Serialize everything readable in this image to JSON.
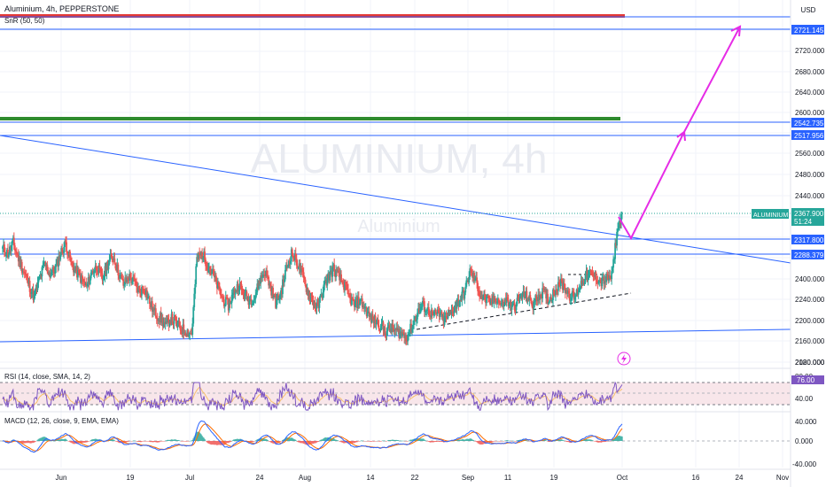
{
  "header": {
    "title": "Aluminium, 4h, PEPPERSTONE",
    "indicator": "SnR (50, 50)",
    "currency": "USD"
  },
  "watermark": {
    "main": "ALUMINIUM, 4h",
    "sub": "Aluminium"
  },
  "colors": {
    "up": "#26a69a",
    "down": "#ef5350",
    "hline": "#2962ff",
    "resistance_red": "#e53935",
    "resistance_green": "#2e8b2e",
    "projection": "#e62ce6",
    "rsi_line": "#7e57c2",
    "rsi_band": "#f8e6ea",
    "macd_line": "#2962ff",
    "signal_line": "#ff6d00"
  },
  "price_axis": {
    "ticks": [
      "2720.000",
      "2680.000",
      "2640.000",
      "2600.000",
      "2560.000",
      "2480.000",
      "2440.000",
      "2400.000",
      "2240.000",
      "2200.000",
      "2160.000",
      "2120.000",
      "2080.000"
    ],
    "labels": [
      {
        "text": "2721.145",
        "style": "blue"
      },
      {
        "text": "2542.735",
        "style": "blue"
      },
      {
        "text": "2517.956",
        "style": "blue"
      },
      {
        "text": "2367.900",
        "style": "green"
      },
      {
        "text": "51:24",
        "style": "green"
      },
      {
        "text": "ALUMINIUM",
        "style": "green"
      },
      {
        "text": "2317.800",
        "style": "blue"
      },
      {
        "text": "2288.379",
        "style": "blue"
      }
    ]
  },
  "rsi_panel": {
    "title": "RSI (14, close, SMA, 14, 2)",
    "ticks": [
      "80.00",
      "40.00"
    ]
  },
  "macd_panel": {
    "title": "MACD (12, 26, close, 9, EMA, EMA)",
    "ticks": [
      "40.000",
      "0.000",
      "-40.000"
    ]
  },
  "time_axis": {
    "labels": [
      "Jun",
      "19",
      "Jul",
      "24",
      "Aug",
      "14",
      "22",
      "Sep",
      "11",
      "19",
      "Oct",
      "16",
      "24",
      "Nov"
    ]
  },
  "chart_data": {
    "type": "candlestick",
    "symbol": "Aluminium",
    "interval": "4h",
    "ylim": [
      2080,
      2740
    ],
    "close_path": [
      2300,
      2290,
      2310,
      2280,
      2255,
      2230,
      2205,
      2240,
      2270,
      2250,
      2260,
      2290,
      2310,
      2270,
      2255,
      2240,
      2225,
      2255,
      2265,
      2240,
      2270,
      2285,
      2255,
      2230,
      2245,
      2235,
      2215,
      2225,
      2195,
      2175,
      2165,
      2150,
      2165,
      2155,
      2145,
      2140,
      2135,
      2280,
      2290,
      2270,
      2250,
      2225,
      2200,
      2190,
      2215,
      2230,
      2210,
      2200,
      2205,
      2240,
      2255,
      2225,
      2195,
      2215,
      2260,
      2290,
      2275,
      2250,
      2220,
      2200,
      2185,
      2220,
      2245,
      2260,
      2245,
      2230,
      2205,
      2190,
      2200,
      2185,
      2165,
      2160,
      2150,
      2140,
      2145,
      2140,
      2135,
      2130,
      2150,
      2175,
      2190,
      2180,
      2170,
      2175,
      2160,
      2170,
      2185,
      2200,
      2215,
      2255,
      2240,
      2210,
      2200,
      2195,
      2205,
      2190,
      2200,
      2185,
      2195,
      2210,
      2205,
      2190,
      2210,
      2215,
      2200,
      2215,
      2235,
      2225,
      2210,
      2205,
      2230,
      2245,
      2250,
      2245,
      2235,
      2240,
      2245,
      2330,
      2368
    ],
    "key_levels": [
      2721.145,
      2542.735,
      2517.956,
      2317.8,
      2288.379
    ],
    "resistance_zones": [
      {
        "color": "red",
        "price": 2730
      },
      {
        "color": "green",
        "price": 2548
      }
    ],
    "projection": [
      {
        "date": "Oct 1",
        "price": 2318
      },
      {
        "date": "Oct 16",
        "price": 2518
      },
      {
        "date": "Oct 24",
        "price": 2721
      }
    ],
    "rsi_last": 76,
    "macd_last": 34
  }
}
